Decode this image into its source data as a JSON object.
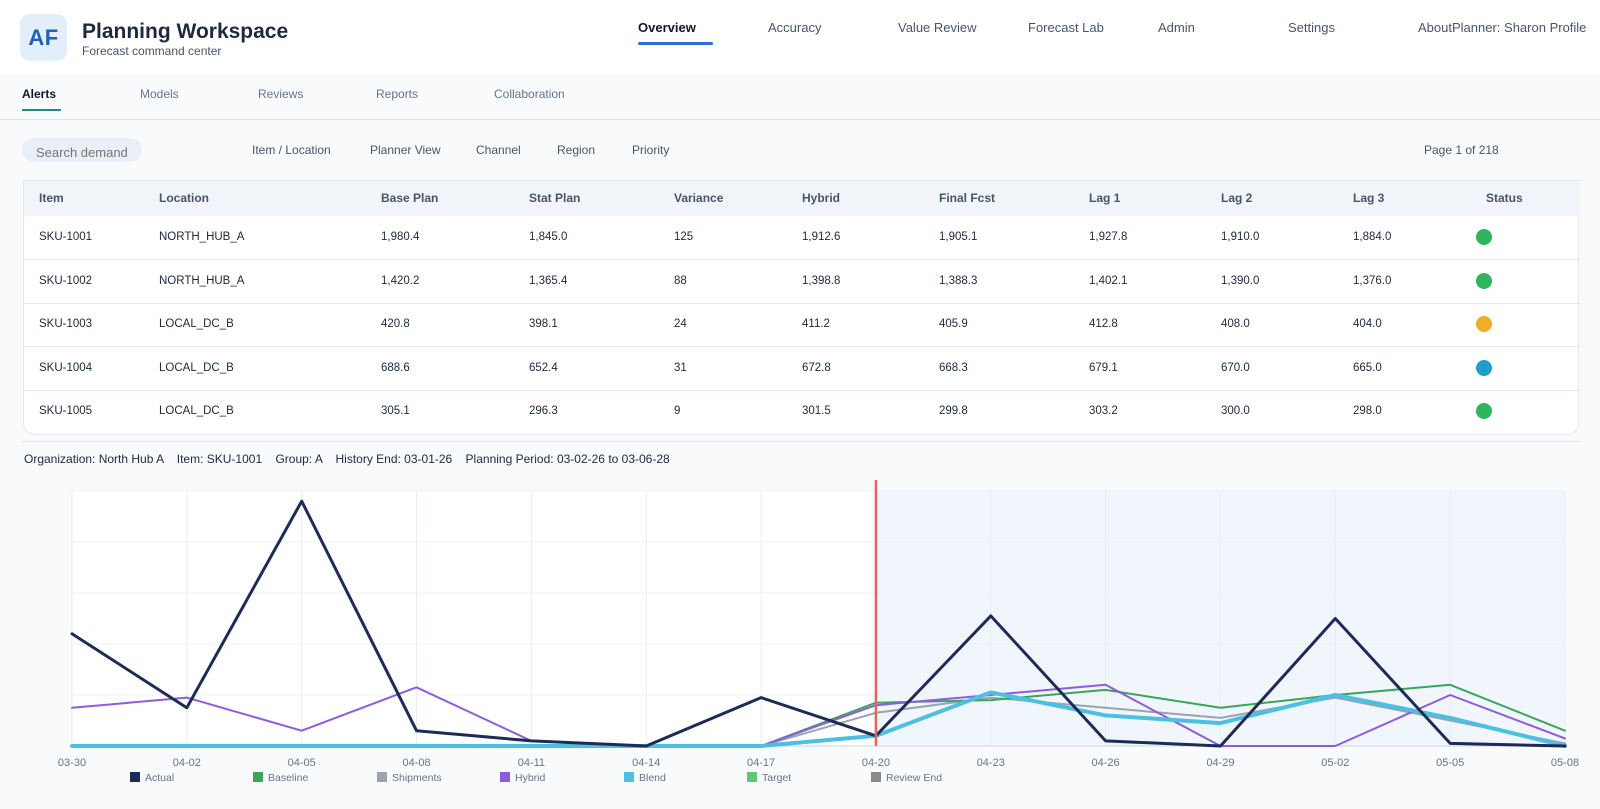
{
  "app": {
    "logo_text": "AF",
    "title": "Planning Workspace",
    "subtitle": "Forecast command center"
  },
  "top_nav": [
    {
      "label": "Overview",
      "active": true
    },
    {
      "label": "Accuracy",
      "active": false
    },
    {
      "label": "Value Review",
      "active": false
    },
    {
      "label": "Forecast Lab",
      "active": false
    },
    {
      "label": "Admin",
      "active": false
    },
    {
      "label": "Settings",
      "active": false
    },
    {
      "label": "About",
      "active": false
    }
  ],
  "user": {
    "label": "Planner: Sharon Profile"
  },
  "subtabs": [
    {
      "label": "Alerts",
      "active": true
    },
    {
      "label": "Models",
      "active": false
    },
    {
      "label": "Reviews",
      "active": false
    },
    {
      "label": "Reports",
      "active": false
    },
    {
      "label": "Collaboration",
      "active": false
    }
  ],
  "search": {
    "placeholder": "Search demand"
  },
  "filters": [
    "Item / Location",
    "Planner View",
    "Channel",
    "Region",
    "Priority"
  ],
  "pager": {
    "label": "Page 1 of 218"
  },
  "table": {
    "columns": [
      "Item",
      "Location",
      "Base Plan",
      "Stat Plan",
      "Variance",
      "Hybrid",
      "Final Fcst",
      "Lag 1",
      "Lag 2",
      "Lag 3",
      "Status"
    ],
    "rows": [
      {
        "cells": [
          "SKU-1001",
          "NORTH_HUB_A",
          "1,980.4",
          "1,845.0",
          "125",
          "1,912.6",
          "1,905.1",
          "1,927.8",
          "1,910.0",
          "1,884.0"
        ],
        "status_color": "#2fb55d"
      },
      {
        "cells": [
          "SKU-1002",
          "NORTH_HUB_A",
          "1,420.2",
          "1,365.4",
          "88",
          "1,398.8",
          "1,388.3",
          "1,402.1",
          "1,390.0",
          "1,376.0"
        ],
        "status_color": "#2fb55d"
      },
      {
        "cells": [
          "SKU-1003",
          "LOCAL_DC_B",
          "420.8",
          "398.1",
          "24",
          "411.2",
          "405.9",
          "412.8",
          "408.0",
          "404.0"
        ],
        "status_color": "#f0ad2b"
      },
      {
        "cells": [
          "SKU-1004",
          "LOCAL_DC_B",
          "688.6",
          "652.4",
          "31",
          "672.8",
          "668.3",
          "679.1",
          "670.0",
          "665.0"
        ],
        "status_color": "#1f9fc9"
      },
      {
        "cells": [
          "SKU-1005",
          "LOCAL_DC_B",
          "305.1",
          "296.3",
          "9",
          "301.5",
          "299.8",
          "303.2",
          "300.0",
          "298.0"
        ],
        "status_color": "#2fb55d"
      }
    ]
  },
  "context": {
    "text": "Organization: North Hub A    Item: SKU-1001    Group: A    History End: 03-01-26    Planning Period: 03-02-26 to 03-06-28"
  },
  "chart_data": {
    "type": "line",
    "x": [
      "03-30",
      "03-31",
      "04-01",
      "04-02",
      "04-03",
      "04-04",
      "04-05",
      "04-06",
      "04-07",
      "04-08",
      "04-09",
      "04-10",
      "04-11",
      "04-12",
      "04-13",
      "04-14",
      "04-15",
      "04-16",
      "04-17",
      "04-18",
      "04-19",
      "04-20",
      "04-21",
      "04-22",
      "04-23",
      "04-24",
      "04-25",
      "04-26",
      "04-27",
      "04-28",
      "04-29",
      "04-30",
      "05-01",
      "05-02",
      "05-03",
      "05-04",
      "05-05",
      "05-06",
      "05-07",
      "05-08"
    ],
    "x_tick_labels": [
      "03-30",
      "04-02",
      "04-05",
      "04-08",
      "04-11",
      "04-14",
      "04-17",
      "04-20",
      "04-23",
      "04-26",
      "04-29",
      "05-02",
      "05-05",
      "05-08"
    ],
    "ylim": [
      0,
      100
    ],
    "review_end": "04-20",
    "grid": true,
    "legend_position": "bottom-left",
    "series": [
      {
        "name": "Actual",
        "color": "#1d2b57",
        "width": 3,
        "points": [
          [
            "03-30",
            44
          ],
          [
            "04-02",
            15
          ],
          [
            "04-05",
            96
          ],
          [
            "04-08",
            6
          ],
          [
            "04-11",
            2
          ],
          [
            "04-14",
            0
          ],
          [
            "04-17",
            19
          ],
          [
            "04-20",
            4
          ],
          [
            "04-23",
            51
          ],
          [
            "04-26",
            2
          ],
          [
            "04-29",
            0
          ],
          [
            "05-02",
            50
          ],
          [
            "05-05",
            1
          ],
          [
            "05-08",
            0
          ]
        ]
      },
      {
        "name": "Baseline",
        "color": "#3aa65a",
        "width": 2,
        "points": [
          [
            "04-17",
            0
          ],
          [
            "04-20",
            17
          ],
          [
            "04-23",
            18
          ],
          [
            "04-26",
            22
          ],
          [
            "04-29",
            15
          ],
          [
            "05-02",
            20
          ],
          [
            "05-05",
            24
          ],
          [
            "05-08",
            6
          ]
        ]
      },
      {
        "name": "Shipments",
        "color": "#9ca3af",
        "width": 2,
        "points": [
          [
            "04-17",
            0
          ],
          [
            "04-20",
            13
          ],
          [
            "04-23",
            19
          ],
          [
            "04-26",
            15
          ],
          [
            "04-29",
            11
          ],
          [
            "05-02",
            19
          ],
          [
            "05-05",
            10
          ],
          [
            "05-08",
            1
          ]
        ]
      },
      {
        "name": "Hybrid",
        "color": "#8e5be0",
        "width": 2,
        "points": [
          [
            "03-30",
            15
          ],
          [
            "04-02",
            19
          ],
          [
            "04-05",
            6
          ],
          [
            "04-08",
            23
          ],
          [
            "04-11",
            2
          ],
          [
            "04-14",
            0
          ],
          [
            "04-17",
            0
          ],
          [
            "04-20",
            16
          ],
          [
            "04-23",
            20
          ],
          [
            "04-26",
            24
          ],
          [
            "04-29",
            0
          ],
          [
            "05-02",
            0
          ],
          [
            "05-05",
            20
          ],
          [
            "05-08",
            3
          ]
        ]
      },
      {
        "name": "Blend",
        "color": "#4dbfe2",
        "width": 4,
        "points": [
          [
            "03-30",
            0
          ],
          [
            "04-17",
            0
          ],
          [
            "04-20",
            4
          ],
          [
            "04-23",
            21
          ],
          [
            "04-26",
            12
          ],
          [
            "04-29",
            9
          ],
          [
            "05-02",
            20
          ],
          [
            "05-05",
            11
          ],
          [
            "05-08",
            0
          ]
        ]
      },
      {
        "name": "Target",
        "color": "#5ec87a",
        "width": 2,
        "points": []
      },
      {
        "name": "Review End",
        "color": "#8a8a8a",
        "width": 2,
        "points": []
      }
    ]
  }
}
